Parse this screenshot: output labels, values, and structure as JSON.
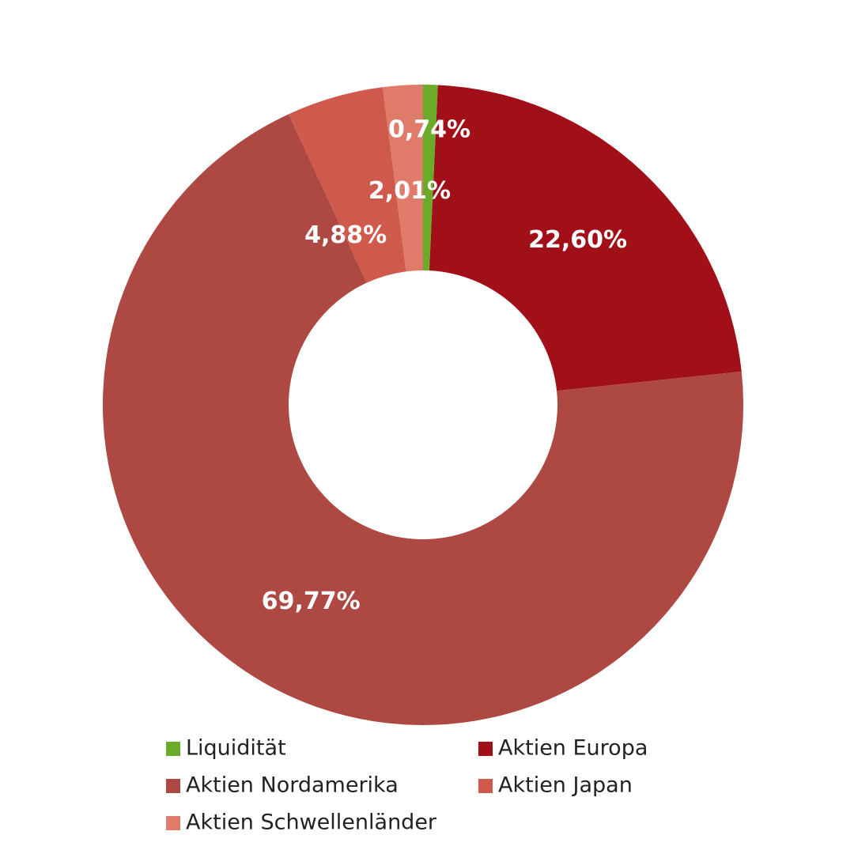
{
  "chart_data": {
    "type": "donut",
    "categories": [
      "Liquidität",
      "Aktien Europa",
      "Aktien Nordamerika",
      "Aktien Japan",
      "Aktien Schwellenländer"
    ],
    "values": [
      0.74,
      22.6,
      69.77,
      4.88,
      2.01
    ],
    "value_labels": [
      "0,74%",
      "22,60%",
      "69,77%",
      "4,88%",
      "2,01%"
    ],
    "colors": [
      "#6aab2a",
      "#a11019",
      "#ad4942",
      "#cf5a4c",
      "#e07b6a"
    ]
  }
}
